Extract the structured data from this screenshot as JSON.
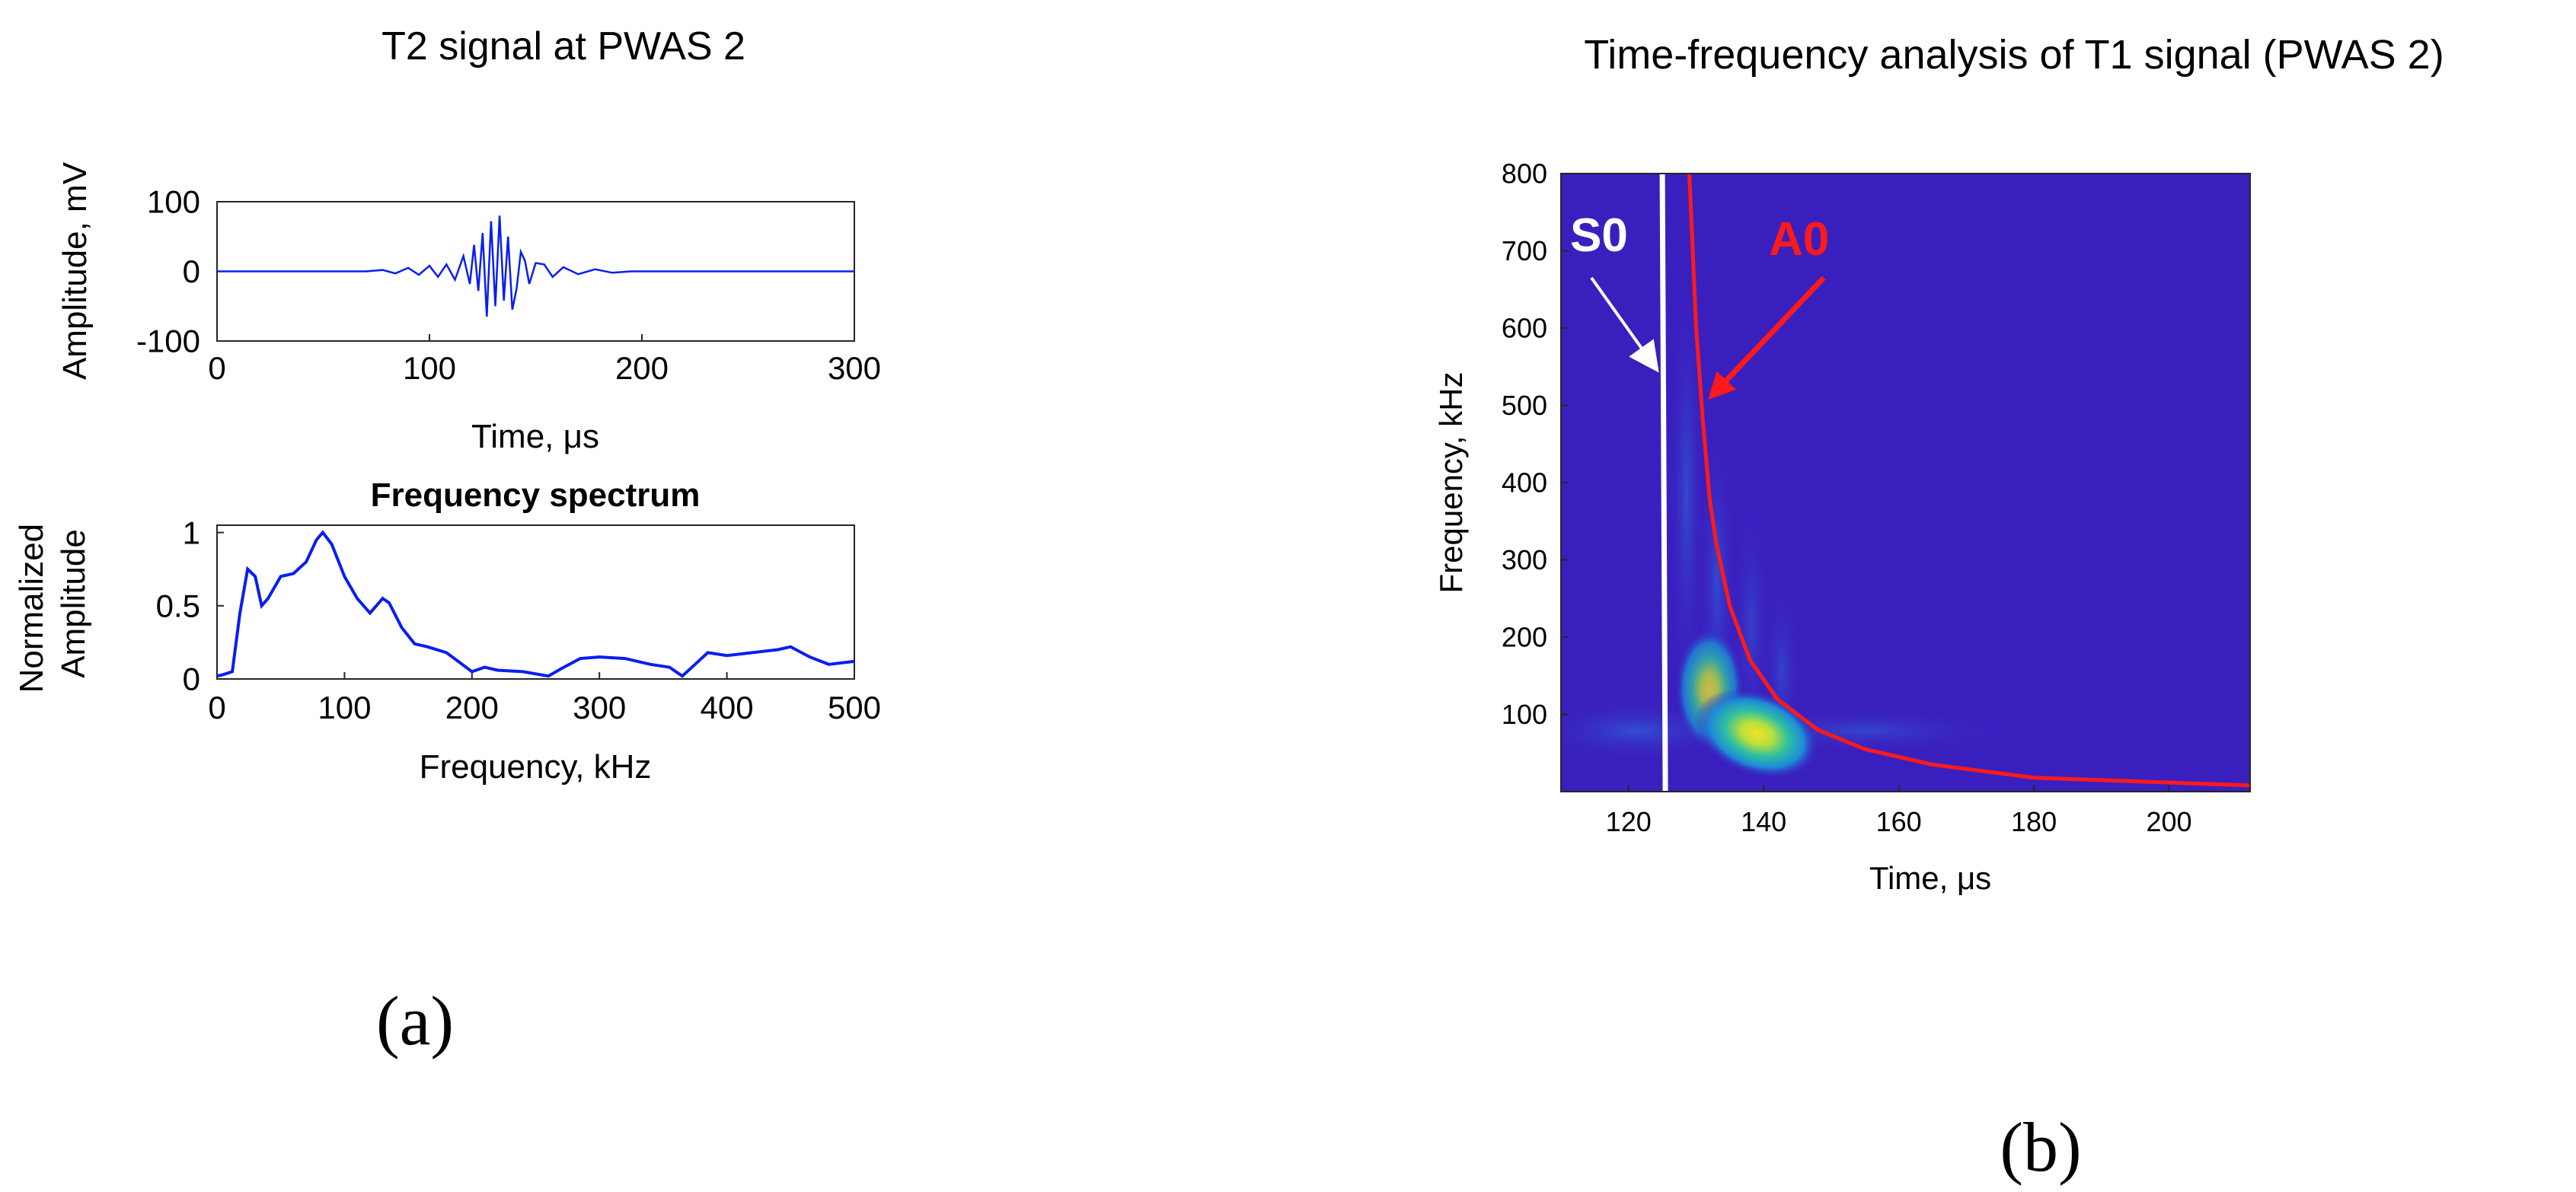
{
  "panel_a": {
    "heading": "T2 signal at PWAS 2",
    "caption": "(a)"
  },
  "panel_b": {
    "heading": "Time-frequency analysis of T1 signal (PWAS 2)",
    "caption": "(b)"
  },
  "colors": {
    "signal_line": "#0a1ef0",
    "s0_line": "#ffffff",
    "a0_curve": "#ff1a1a",
    "spectrogram_background": "#3a1fbf",
    "axis": "#262626"
  },
  "chart_data": [
    {
      "id": "time-signal",
      "type": "line",
      "title": "",
      "xlabel": "Time, μs",
      "ylabel": "Amplitude, mV",
      "xlim": [
        0,
        300
      ],
      "ylim": [
        -100,
        100
      ],
      "xticks": [
        0,
        100,
        200,
        300
      ],
      "yticks": [
        -100,
        0,
        100
      ],
      "x": [
        0,
        70,
        78,
        84,
        90,
        95,
        100,
        104,
        108,
        112,
        116,
        119,
        121,
        123,
        125,
        127,
        129,
        131,
        133,
        135,
        137,
        139,
        141,
        143,
        145,
        147,
        150,
        154,
        158,
        163,
        170,
        178,
        186,
        195,
        300
      ],
      "series": [
        {
          "name": "T2 signal",
          "values": [
            0,
            0,
            2,
            -3,
            5,
            -5,
            8,
            -8,
            10,
            -12,
            22,
            -18,
            38,
            -28,
            55,
            -65,
            72,
            -50,
            80,
            -42,
            50,
            -55,
            -25,
            28,
            15,
            -18,
            12,
            10,
            -8,
            6,
            -4,
            3,
            -2,
            0,
            0
          ]
        }
      ]
    },
    {
      "id": "frequency-spectrum",
      "type": "line",
      "title": "Frequency spectrum",
      "xlabel": "Frequency, kHz",
      "ylabel": "Normalized Amplitude",
      "xlim": [
        0,
        500
      ],
      "ylim": [
        0,
        1.05
      ],
      "xticks": [
        0,
        100,
        200,
        300,
        400,
        500
      ],
      "yticks": [
        0,
        0.5,
        1
      ],
      "ytick_labels": [
        "0",
        "0.5",
        "1"
      ],
      "x": [
        0,
        5,
        12,
        18,
        24,
        30,
        35,
        40,
        50,
        60,
        70,
        78,
        83,
        90,
        100,
        110,
        120,
        130,
        135,
        145,
        155,
        165,
        180,
        200,
        210,
        220,
        240,
        260,
        270,
        285,
        300,
        320,
        340,
        355,
        365,
        375,
        385,
        400,
        420,
        440,
        450,
        465,
        480,
        500
      ],
      "series": [
        {
          "name": "Spectrum",
          "values": [
            0.02,
            0.03,
            0.05,
            0.45,
            0.75,
            0.7,
            0.5,
            0.55,
            0.7,
            0.72,
            0.8,
            0.95,
            1.0,
            0.92,
            0.7,
            0.55,
            0.45,
            0.55,
            0.52,
            0.35,
            0.24,
            0.22,
            0.18,
            0.05,
            0.08,
            0.06,
            0.05,
            0.02,
            0.07,
            0.14,
            0.15,
            0.14,
            0.1,
            0.08,
            0.02,
            0.1,
            0.18,
            0.16,
            0.18,
            0.2,
            0.22,
            0.15,
            0.1,
            0.12
          ]
        }
      ]
    },
    {
      "id": "time-frequency",
      "type": "heatmap",
      "title": "",
      "xlabel": "Time, μs",
      "ylabel": "Frequency, kHz",
      "xlim": [
        110,
        212
      ],
      "ylim": [
        0,
        800
      ],
      "xticks": [
        120,
        140,
        160,
        180,
        200
      ],
      "yticks": [
        100,
        200,
        300,
        400,
        500,
        600,
        700,
        800
      ],
      "energy_peak": {
        "time_us": 139,
        "frequency_khz": 75
      },
      "mode_lines": [
        {
          "name": "S0",
          "label": "S0",
          "color": "#ffffff",
          "time_us": 125
        },
        {
          "name": "A0",
          "label": "A0",
          "color": "#ff1a1a",
          "x": [
            129,
            130,
            131,
            132,
            133,
            135,
            138,
            142,
            148,
            155,
            165,
            180,
            212
          ],
          "y": [
            800,
            600,
            480,
            380,
            320,
            240,
            170,
            120,
            80,
            55,
            35,
            18,
            8
          ]
        }
      ]
    }
  ]
}
